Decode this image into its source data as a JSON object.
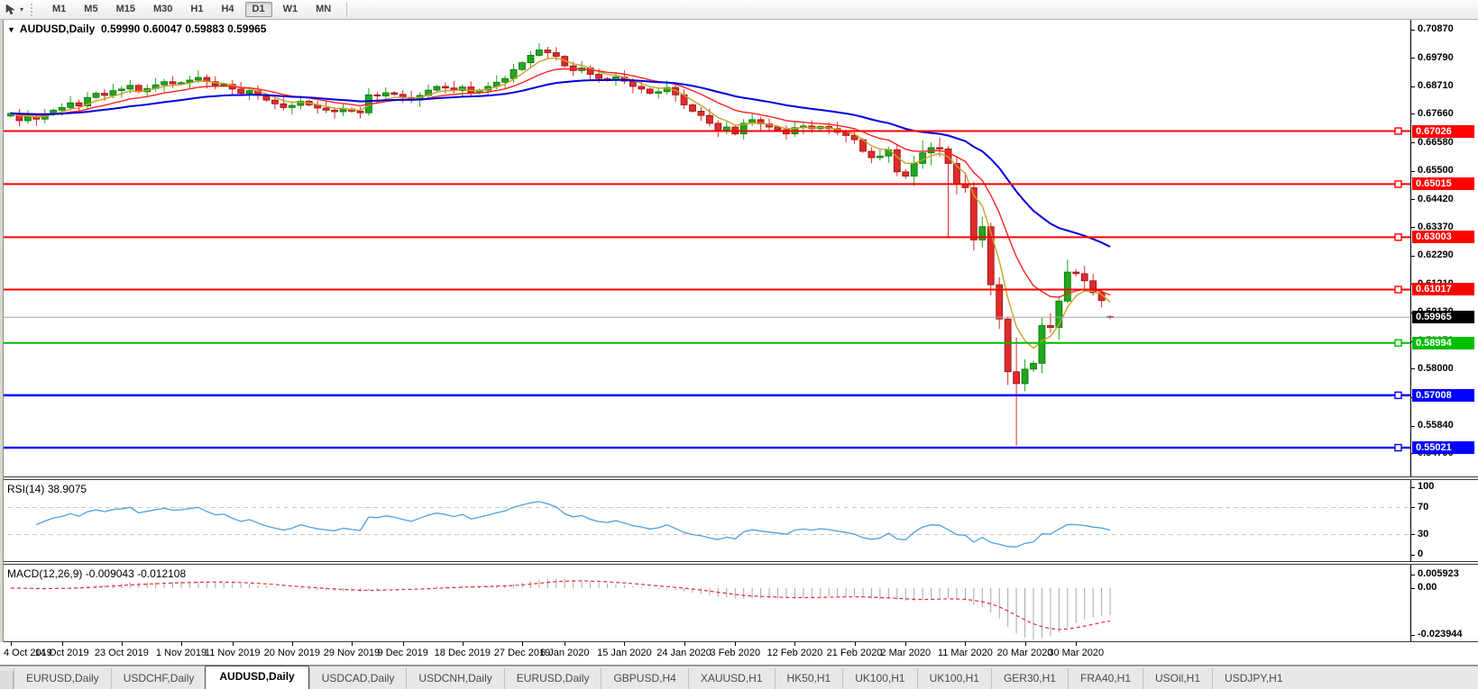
{
  "toolbar": {
    "timeframes": [
      "M1",
      "M5",
      "M15",
      "M30",
      "H1",
      "H4",
      "D1",
      "W1",
      "MN"
    ],
    "active_timeframe": "D1"
  },
  "chart": {
    "title_symbol": "AUDUSD,Daily",
    "title_ohlc": "0.59990 0.60047 0.59883 0.59965",
    "price_axis_labels": [
      "0.70870",
      "0.69790",
      "0.68710",
      "0.67660",
      "0.66580",
      "0.65500",
      "0.64420",
      "0.63370",
      "0.62290",
      "0.61210",
      "0.60130",
      "0.59050",
      "0.58000",
      "0.56920",
      "0.55840",
      "0.54790"
    ],
    "levels": [
      {
        "label": "0.67026",
        "price": 0.67026,
        "color": "#FF0000",
        "kind": "hline"
      },
      {
        "label": "0.65015",
        "price": 0.65015,
        "color": "#FF0000",
        "kind": "hline"
      },
      {
        "label": "0.63003",
        "price": 0.63003,
        "color": "#FF0000",
        "kind": "hline"
      },
      {
        "label": "0.61017",
        "price": 0.61017,
        "color": "#FF0000",
        "kind": "hline"
      },
      {
        "label": "0.59965",
        "price": 0.59965,
        "color": "#000000",
        "line_color": "#A6A6A6",
        "kind": "current-price"
      },
      {
        "label": "0.58994",
        "price": 0.58994,
        "color": "#00BE00",
        "kind": "hline"
      },
      {
        "label": "0.57008",
        "price": 0.57008,
        "color": "#0000FF",
        "kind": "hline"
      },
      {
        "label": "0.55021",
        "price": 0.55021,
        "color": "#0000FF",
        "kind": "hline"
      }
    ]
  },
  "rsi": {
    "label": "RSI(14)",
    "value": "38.9075",
    "axis_labels": [
      "100",
      "70",
      "30",
      "0"
    ],
    "axis_values": [
      100,
      70,
      30,
      0
    ],
    "guide_levels": [
      70,
      30
    ]
  },
  "macd": {
    "label": "MACD(12,26,9)",
    "value_macd": "-0.009043",
    "value_signal": "-0.012108",
    "axis_top": "0.005923",
    "axis_zero": "0.00",
    "axis_bottom": "-0.023944"
  },
  "date_axis": {
    "labels": [
      "4 Oct 2019",
      "14 Oct 2019",
      "23 Oct 2019",
      "1 Nov 2019",
      "11 Nov 2019",
      "20 Nov 2019",
      "29 Nov 2019",
      "9 Dec 2019",
      "18 Dec 2019",
      "27 Dec 2019",
      "6 Jan 2020",
      "15 Jan 2020",
      "24 Jan 2020",
      "3 Feb 2020",
      "12 Feb 2020",
      "21 Feb 2020",
      "2 Mar 2020",
      "11 Mar 2020",
      "20 Mar 2020",
      "30 Mar 2020"
    ],
    "candle_index": [
      0,
      6,
      13,
      20,
      26,
      33,
      40,
      46,
      53,
      60,
      65,
      72,
      79,
      85,
      92,
      99,
      105,
      112,
      119,
      125
    ]
  },
  "tabs": {
    "items": [
      "EURUSD,Daily",
      "USDCHF,Daily",
      "AUDUSD,Daily",
      "USDCAD,Daily",
      "USDCNH,Daily",
      "EURUSD,Daily",
      "GBPUSD,H4",
      "XAUUSD,H1",
      "HK50,H1",
      "UK100,H1",
      "UK100,H1",
      "GER30,H1",
      "FRA40,H1",
      "USOil,H1",
      "USDJPY,H1"
    ],
    "active_index": 2
  },
  "chart_data": {
    "type": "candlestick",
    "symbol": "AUDUSD",
    "timeframe": "Daily",
    "last_ohlc": {
      "open": 0.5999,
      "high": 0.60047,
      "low": 0.59883,
      "close": 0.59965
    },
    "current_price": 0.59965,
    "pip_factor": 0.0001,
    "closes_pips": [
      6770,
      6742,
      6756,
      6748,
      6766,
      6782,
      6792,
      6810,
      6798,
      6830,
      6846,
      6838,
      6856,
      6862,
      6876,
      6852,
      6864,
      6878,
      6890,
      6882,
      6886,
      6896,
      6906,
      6890,
      6876,
      6880,
      6862,
      6846,
      6856,
      6838,
      6820,
      6806,
      6792,
      6800,
      6816,
      6802,
      6790,
      6782,
      6776,
      6786,
      6778,
      6772,
      6840,
      6836,
      6848,
      6842,
      6830,
      6820,
      6838,
      6858,
      6872,
      6866,
      6856,
      6870,
      6848,
      6858,
      6872,
      6888,
      6902,
      6936,
      6962,
      6990,
      7010,
      7000,
      6986,
      6950,
      6932,
      6942,
      6918,
      6902,
      6896,
      6908,
      6892,
      6872,
      6862,
      6846,
      6852,
      6868,
      6840,
      6802,
      6778,
      6762,
      6732,
      6706,
      6718,
      6692,
      6732,
      6746,
      6730,
      6718,
      6708,
      6692,
      6716,
      6722,
      6712,
      6720,
      6712,
      6698,
      6686,
      6670,
      6626,
      6602,
      6608,
      6632,
      6548,
      6532,
      6580,
      6620,
      6640,
      6635,
      6580,
      6500,
      6488,
      6290,
      6340,
      6120,
      5990,
      5790,
      5745,
      5800,
      5822,
      5965,
      5958,
      6058,
      6168,
      6162,
      6135,
      6090,
      6060,
      5996.5
    ],
    "open_overrides_pips": {
      "0": 6760,
      "129": 5999
    },
    "wick_overrides_pips": {
      "62": [
        7035,
        6985
      ],
      "63": [
        7022,
        6975
      ],
      "110": [
        6645,
        6300
      ],
      "113": [
        6510,
        6250
      ],
      "115": [
        6355,
        6080
      ],
      "117": [
        6000,
        5740
      ],
      "118": [
        5920,
        5510
      ],
      "124": [
        6215,
        6050
      ],
      "129": [
        6004.7,
        5988.3
      ]
    },
    "candle_colors": {
      "up_fill": "#1FA81F",
      "up_stroke": "#0B700B",
      "down_fill": "#DF2B2B",
      "down_stroke": "#951111"
    },
    "moving_averages": [
      {
        "type": "ema",
        "period": 5,
        "color": "#C9A227",
        "width": 1.4,
        "name": "fast-ma"
      },
      {
        "type": "ema",
        "period": 13,
        "color": "#FF2222",
        "width": 1.4,
        "name": "mid-ma"
      },
      {
        "type": "ema",
        "period": 34,
        "color": "#0000DD",
        "width": 2,
        "name": "slow-ma"
      }
    ],
    "price_axis": {
      "anchor_price": 0.7087,
      "ticks": [
        0.7087,
        0.6979,
        0.6871,
        0.6766,
        0.6658,
        0.655,
        0.6442,
        0.6337,
        0.6229,
        0.6121,
        0.6013,
        0.5905,
        0.58,
        0.5692,
        0.5584,
        0.5479
      ]
    },
    "key_levels": [
      0.67026,
      0.65015,
      0.63003,
      0.61017,
      0.58994,
      0.57008,
      0.55021
    ],
    "indicators": {
      "rsi": {
        "period": 14,
        "last_value": 38.9075,
        "scale": [
          0,
          100
        ],
        "guides": [
          70,
          30
        ],
        "color": "#4FA0E0"
      },
      "macd": {
        "fast": 12,
        "slow": 26,
        "signal": 9,
        "last_macd": -0.009043,
        "last_signal": -0.012108,
        "axis_max": 0.005923,
        "axis_min": -0.023944,
        "histogram_color": "#A8A8A8",
        "signal_color": "#E03030"
      }
    }
  }
}
